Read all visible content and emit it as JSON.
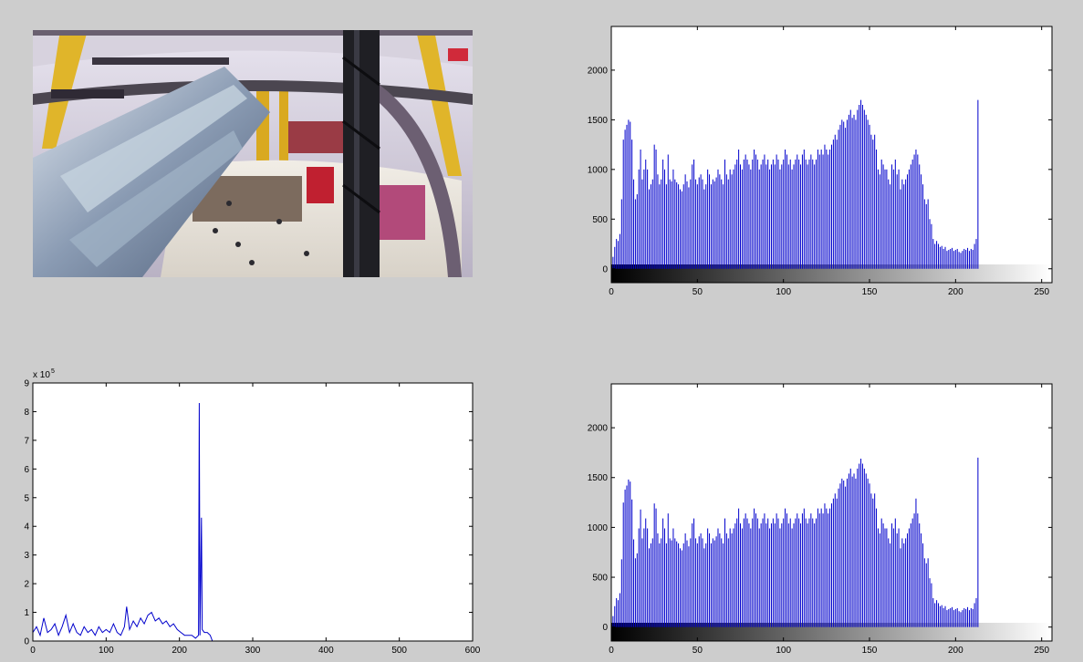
{
  "figure": {
    "background": "#cdcdcd",
    "line_color": "#0000cc",
    "photo_icon": "shopping-mall-escalator-photo"
  },
  "chart_data": [
    {
      "id": "histogram-original",
      "type": "bar",
      "title": "",
      "xlabel": "",
      "ylabel": "",
      "xlim": [
        0,
        256
      ],
      "ylim": [
        -140,
        2440
      ],
      "xticks": [
        0,
        50,
        100,
        150,
        200,
        250
      ],
      "yticks": [
        0,
        500,
        1000,
        1500,
        2000
      ],
      "colorbar": "grayscale",
      "grid": false,
      "x_start": 0,
      "values": [
        180,
        120,
        220,
        300,
        280,
        350,
        700,
        1300,
        1400,
        1450,
        1500,
        1480,
        1300,
        900,
        700,
        750,
        1000,
        1200,
        900,
        1000,
        1100,
        1000,
        800,
        850,
        900,
        1250,
        1200,
        950,
        850,
        900,
        1100,
        1000,
        850,
        1150,
        900,
        880,
        1000,
        900,
        870,
        850,
        800,
        780,
        850,
        950,
        880,
        820,
        900,
        1050,
        1100,
        900,
        850,
        920,
        950,
        900,
        800,
        850,
        1000,
        950,
        850,
        900,
        880,
        920,
        1000,
        950,
        900,
        850,
        1100,
        950,
        900,
        1000,
        950,
        1000,
        1050,
        1100,
        1200,
        1050,
        1000,
        1100,
        1150,
        1100,
        1050,
        1000,
        1100,
        1200,
        1150,
        1100,
        1000,
        1050,
        1100,
        1150,
        1050,
        1100,
        1000,
        1050,
        1100,
        1050,
        1150,
        1100,
        1000,
        1050,
        1100,
        1200,
        1150,
        1050,
        1100,
        1000,
        1050,
        1100,
        1150,
        1100,
        1050,
        1150,
        1200,
        1100,
        1050,
        1100,
        1150,
        1100,
        1050,
        1100,
        1200,
        1150,
        1200,
        1150,
        1250,
        1200,
        1150,
        1200,
        1250,
        1300,
        1350,
        1300,
        1400,
        1450,
        1500,
        1480,
        1420,
        1500,
        1550,
        1600,
        1520,
        1550,
        1500,
        1600,
        1650,
        1700,
        1650,
        1600,
        1550,
        1500,
        1450,
        1350,
        1300,
        1350,
        1200,
        1000,
        950,
        1100,
        1050,
        1000,
        1000,
        900,
        850,
        1050,
        1000,
        1100,
        950,
        1000,
        800,
        900,
        850,
        900,
        950,
        1000,
        1050,
        1100,
        1150,
        1200,
        1150,
        1050,
        950,
        850,
        700,
        650,
        700,
        500,
        450,
        300,
        250,
        280,
        250,
        220,
        230,
        200,
        220,
        180,
        190,
        200,
        210,
        180,
        190,
        200,
        170,
        160,
        180,
        200,
        190,
        210,
        180,
        200,
        190,
        250,
        300,
        1700
      ]
    },
    {
      "id": "line-histogram",
      "type": "line",
      "title": "",
      "xlabel": "",
      "ylabel": "",
      "xlim": [
        0,
        600
      ],
      "ylim": [
        0,
        9
      ],
      "y_multiplier": "x 10",
      "y_exponent": "5",
      "xticks": [
        0,
        100,
        200,
        300,
        400,
        500,
        600
      ],
      "yticks": [
        0,
        1,
        2,
        3,
        4,
        5,
        6,
        7,
        8,
        9
      ],
      "grid": false,
      "points": [
        [
          0,
          0.3
        ],
        [
          5,
          0.5
        ],
        [
          10,
          0.2
        ],
        [
          15,
          0.8
        ],
        [
          20,
          0.3
        ],
        [
          25,
          0.4
        ],
        [
          30,
          0.6
        ],
        [
          35,
          0.2
        ],
        [
          40,
          0.5
        ],
        [
          45,
          0.9
        ],
        [
          50,
          0.3
        ],
        [
          55,
          0.6
        ],
        [
          60,
          0.3
        ],
        [
          65,
          0.2
        ],
        [
          70,
          0.5
        ],
        [
          75,
          0.3
        ],
        [
          80,
          0.4
        ],
        [
          85,
          0.2
        ],
        [
          90,
          0.5
        ],
        [
          95,
          0.3
        ],
        [
          100,
          0.4
        ],
        [
          105,
          0.3
        ],
        [
          110,
          0.6
        ],
        [
          115,
          0.3
        ],
        [
          120,
          0.2
        ],
        [
          125,
          0.5
        ],
        [
          128,
          1.2
        ],
        [
          132,
          0.4
        ],
        [
          137,
          0.7
        ],
        [
          142,
          0.5
        ],
        [
          147,
          0.8
        ],
        [
          152,
          0.6
        ],
        [
          157,
          0.9
        ],
        [
          162,
          1.0
        ],
        [
          167,
          0.7
        ],
        [
          172,
          0.8
        ],
        [
          177,
          0.6
        ],
        [
          182,
          0.7
        ],
        [
          187,
          0.5
        ],
        [
          192,
          0.6
        ],
        [
          197,
          0.4
        ],
        [
          202,
          0.3
        ],
        [
          207,
          0.2
        ],
        [
          212,
          0.2
        ],
        [
          217,
          0.2
        ],
        [
          222,
          0.1
        ],
        [
          226,
          0.2
        ],
        [
          227,
          8.3
        ],
        [
          228,
          0.2
        ],
        [
          230,
          4.3
        ],
        [
          231,
          0.4
        ],
        [
          234,
          0.3
        ],
        [
          238,
          0.3
        ],
        [
          242,
          0.2
        ],
        [
          245,
          0.0
        ],
        [
          600,
          0.0
        ]
      ]
    },
    {
      "id": "histogram-processed",
      "type": "bar",
      "title": "",
      "xlabel": "",
      "ylabel": "",
      "xlim": [
        0,
        256
      ],
      "ylim": [
        -140,
        2440
      ],
      "xticks": [
        0,
        50,
        100,
        150,
        200,
        250
      ],
      "yticks": [
        0,
        500,
        1000,
        1500,
        2000
      ],
      "colorbar": "grayscale",
      "grid": false,
      "x_start": 0,
      "values": [
        170,
        110,
        210,
        290,
        270,
        340,
        680,
        1250,
        1380,
        1420,
        1480,
        1460,
        1280,
        880,
        690,
        740,
        990,
        1180,
        890,
        990,
        1090,
        990,
        790,
        840,
        890,
        1240,
        1190,
        940,
        840,
        890,
        1090,
        990,
        840,
        1140,
        890,
        870,
        990,
        890,
        860,
        840,
        790,
        770,
        840,
        940,
        870,
        810,
        890,
        1040,
        1090,
        890,
        840,
        910,
        940,
        890,
        790,
        840,
        990,
        940,
        840,
        890,
        870,
        910,
        990,
        940,
        890,
        840,
        1090,
        940,
        890,
        990,
        940,
        990,
        1040,
        1090,
        1190,
        1040,
        990,
        1090,
        1140,
        1090,
        1040,
        990,
        1090,
        1190,
        1140,
        1090,
        990,
        1040,
        1090,
        1140,
        1040,
        1090,
        990,
        1040,
        1090,
        1040,
        1140,
        1090,
        990,
        1040,
        1090,
        1190,
        1140,
        1040,
        1090,
        990,
        1040,
        1090,
        1140,
        1090,
        1040,
        1140,
        1190,
        1090,
        1040,
        1090,
        1140,
        1090,
        1040,
        1090,
        1190,
        1140,
        1190,
        1140,
        1240,
        1190,
        1140,
        1190,
        1240,
        1290,
        1340,
        1290,
        1390,
        1440,
        1490,
        1470,
        1410,
        1490,
        1540,
        1590,
        1510,
        1540,
        1490,
        1590,
        1640,
        1690,
        1640,
        1590,
        1540,
        1490,
        1440,
        1340,
        1290,
        1340,
        1190,
        990,
        940,
        1090,
        1040,
        990,
        990,
        890,
        840,
        1040,
        990,
        1090,
        940,
        990,
        790,
        890,
        840,
        890,
        940,
        990,
        1040,
        1090,
        1140,
        1290,
        1140,
        1040,
        940,
        840,
        690,
        640,
        690,
        490,
        440,
        290,
        240,
        270,
        240,
        210,
        220,
        190,
        210,
        170,
        180,
        190,
        200,
        170,
        180,
        190,
        160,
        150,
        170,
        190,
        180,
        200,
        170,
        190,
        180,
        240,
        290,
        1700
      ]
    }
  ]
}
